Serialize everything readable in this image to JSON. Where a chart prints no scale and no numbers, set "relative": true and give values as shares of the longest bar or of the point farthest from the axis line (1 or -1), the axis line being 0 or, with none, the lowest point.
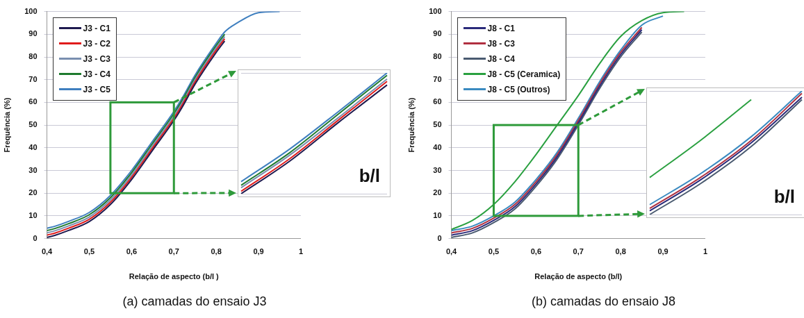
{
  "chart_data": [
    {
      "type": "line",
      "xlabel": "Relação de aspecto (b/l )",
      "ylabel": "Frequência (%)",
      "xlim": [
        0.4,
        1
      ],
      "ylim": [
        0,
        100
      ],
      "xticks": [
        {
          "value": 0.4,
          "label": "0,4"
        },
        {
          "value": 0.5,
          "label": "0,5"
        },
        {
          "value": 0.6,
          "label": "0,6"
        },
        {
          "value": 0.7,
          "label": "0,7"
        },
        {
          "value": 0.8,
          "label": "0,8"
        },
        {
          "value": 0.9,
          "label": "0,9"
        },
        {
          "value": 1,
          "label": "1"
        }
      ],
      "yticks": [
        0,
        10,
        20,
        30,
        40,
        50,
        60,
        70,
        80,
        90,
        100
      ],
      "grid": "y",
      "legend": "top left",
      "marker": "none",
      "line_style": "solid",
      "x": [
        0.4,
        0.42,
        0.45,
        0.5,
        0.55,
        0.6,
        0.65,
        0.7,
        0.72,
        0.75,
        0.8,
        0.82,
        0.85,
        0.9,
        0.95
      ],
      "series": [
        {
          "name": "J3 - C1",
          "color": "#1f1a4f",
          "values": [
            0.5,
            1.5,
            3.5,
            7.5,
            15,
            26,
            39,
            52,
            58,
            68,
            82,
            87,
            null,
            null,
            null
          ]
        },
        {
          "name": "J3 - C2",
          "color": "#e01b1b",
          "values": [
            1.5,
            2.5,
            4.5,
            8.5,
            16,
            27,
            40,
            53,
            59,
            69,
            83,
            88,
            null,
            null,
            null
          ]
        },
        {
          "name": "J3 - C3",
          "color": "#7a8fb0",
          "values": [
            2.5,
            3.5,
            5.5,
            9.5,
            17,
            28,
            41,
            54,
            60,
            70,
            84,
            89,
            null,
            null,
            null
          ]
        },
        {
          "name": "J3 - C4",
          "color": "#1e7a2e",
          "values": [
            3.5,
            4.5,
            6.5,
            10.5,
            18,
            29,
            42,
            55,
            61,
            71,
            85,
            90,
            null,
            null,
            null
          ]
        },
        {
          "name": "J3 - C5",
          "color": "#3f7fbf",
          "values": [
            4.5,
            5.5,
            7.5,
            11.5,
            19,
            30,
            43,
            56,
            62,
            72,
            86,
            91,
            95,
            99.5,
            100
          ]
        }
      ],
      "annotations": [
        "(a) camadas do ensaio J3"
      ]
    },
    {
      "type": "line",
      "relative": true,
      "categories": [
        null,
        null,
        null,
        null
      ],
      "grid": "y",
      "marker": "none",
      "line_style": "solid",
      "series": [
        {
          "color": "#1f1a4f",
          "values": [
            0,
            0.27,
            0.59,
            0.9
          ]
        },
        {
          "color": "#e01b1b",
          "values": [
            0.02,
            0.29,
            0.61,
            0.93
          ]
        },
        {
          "color": "#7a8fb0",
          "values": [
            0.05,
            0.32,
            0.63,
            0.95
          ]
        },
        {
          "color": "#1e7a2e",
          "values": [
            0.07,
            0.34,
            0.66,
            0.98
          ]
        },
        {
          "color": "#3f7fbf",
          "values": [
            0.1,
            0.37,
            0.68,
            1
          ]
        }
      ],
      "annotations": [
        "b/l"
      ]
    },
    {
      "type": "line",
      "xlabel": "Relação de aspecto (b/l)",
      "ylabel": "Frequência (%)",
      "xlim": [
        0.4,
        1
      ],
      "ylim": [
        0,
        100
      ],
      "xticks": [
        {
          "value": 0.4,
          "label": "0,4"
        },
        {
          "value": 0.5,
          "label": "0,5"
        },
        {
          "value": 0.6,
          "label": "0,6"
        },
        {
          "value": 0.7,
          "label": "0,7"
        },
        {
          "value": 0.8,
          "label": "0,8"
        },
        {
          "value": 0.9,
          "label": "0,9"
        },
        {
          "value": 1,
          "label": "1"
        }
      ],
      "yticks": [
        0,
        10,
        20,
        30,
        40,
        50,
        60,
        70,
        80,
        90,
        100
      ],
      "grid": "y",
      "legend": "top left",
      "marker": "none",
      "line_style": "solid",
      "x": [
        0.4,
        0.45,
        0.5,
        0.55,
        0.6,
        0.65,
        0.7,
        0.75,
        0.8,
        0.85,
        0.9,
        0.95
      ],
      "series": [
        {
          "name": "J8 - C1",
          "color": "#2a2a7a",
          "values": [
            1.5,
            3.5,
            8,
            14,
            24,
            36,
            51,
            67,
            81,
            92,
            null,
            null
          ]
        },
        {
          "name": "J8 - C3",
          "color": "#b03040",
          "values": [
            2.5,
            4.5,
            9,
            15,
            25,
            37,
            52,
            68,
            82,
            93,
            null,
            null
          ]
        },
        {
          "name": "J8 - C4",
          "color": "#4a5a70",
          "values": [
            0.5,
            2.5,
            7,
            13,
            23,
            35,
            50,
            66,
            80,
            91,
            null,
            null
          ]
        },
        {
          "name": "J8 - C5 (Ceramica)",
          "color": "#2aa040",
          "values": [
            4,
            8,
            15,
            25,
            37,
            50,
            63,
            77,
            89,
            96,
            99.5,
            100
          ]
        },
        {
          "name": "J8 - C5 (Outros)",
          "color": "#3a8ac0",
          "values": [
            3.5,
            5.5,
            10,
            16,
            26,
            38,
            53,
            69,
            83,
            94,
            98,
            null
          ]
        }
      ],
      "annotations": [
        "(b) camadas do ensaio J8"
      ]
    },
    {
      "type": "line",
      "relative": true,
      "categories": [
        null,
        null,
        null,
        null
      ],
      "grid": "y",
      "marker": "none",
      "line_style": "solid",
      "series": [
        {
          "color": "#2a2a7a",
          "values": [
            0.03,
            0.28,
            0.58,
            0.95
          ]
        },
        {
          "color": "#b03040",
          "values": [
            0.05,
            0.3,
            0.6,
            0.98
          ]
        },
        {
          "color": "#4a5a70",
          "values": [
            0,
            0.25,
            0.55,
            0.93
          ]
        },
        {
          "color": "#2aa040",
          "values": [
            0.3,
            0.6,
            0.93,
            null
          ]
        },
        {
          "color": "#3a8ac0",
          "values": [
            0.08,
            0.33,
            0.63,
            1
          ]
        }
      ],
      "annotations": [
        "b/l"
      ]
    }
  ]
}
